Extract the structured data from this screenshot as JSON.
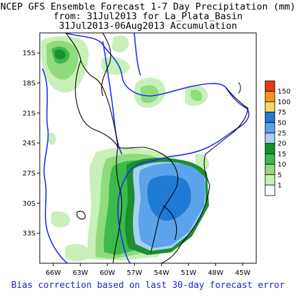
{
  "title": {
    "line1": "NCEP GFS Ensemble Forecast 1-7 Day Precipitation (mm)",
    "line2": "from: 31Jul2013   for La_Plata_Basin",
    "line3": "31Jul2013-06Aug2013 Accumulation"
  },
  "footer": "Bias correction based on last 30-day forecast error",
  "map": {
    "lon_labels": [
      "66W",
      "63W",
      "60W",
      "57W",
      "54W",
      "51W",
      "48W",
      "45W"
    ],
    "lat_labels": [
      "15S",
      "18S",
      "21S",
      "24S",
      "27S",
      "30S",
      "33S"
    ],
    "lon_range": [
      -67.5,
      -43.5
    ],
    "lat_range": [
      -36,
      -13
    ]
  },
  "legend": {
    "levels": [
      "150",
      "100",
      "75",
      "50",
      "25",
      "20",
      "15",
      "10",
      "5",
      "1"
    ],
    "colors": [
      "#e63a10",
      "#f7941d",
      "#fcd36b",
      "#1f7ad4",
      "#5ba3ea",
      "#a7cff5",
      "#1a8f2e",
      "#3cba4a",
      "#8fdb7e",
      "#c8f0b8",
      "#ffffff"
    ]
  }
}
